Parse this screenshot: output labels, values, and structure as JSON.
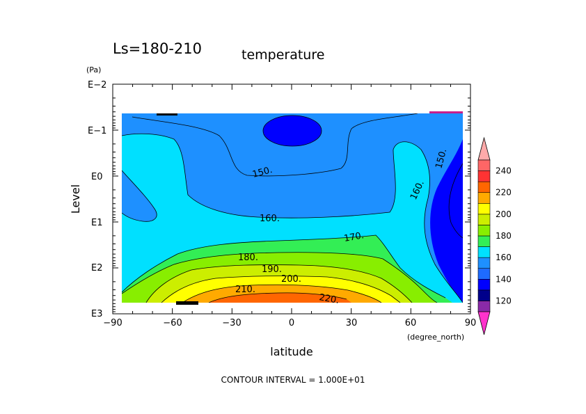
{
  "chart_data": {
    "type": "contour",
    "title_left": "Ls=180-210",
    "title_right": "temperature",
    "xlabel": "latitude",
    "xunit": "(degree_north)",
    "ylabel": "Level",
    "yunit": "(Pa)",
    "xlim": [
      -90,
      90
    ],
    "xticks": [
      -90,
      -60,
      -30,
      0,
      30,
      60,
      90
    ],
    "xtick_labels": [
      "−90",
      "−60",
      "−30",
      "0",
      "30",
      "60",
      "90"
    ],
    "ylim_log10": [
      -2,
      3
    ],
    "yticks_log10": [
      -2,
      -1,
      0,
      1,
      2,
      3
    ],
    "ytick_labels": [
      "E−2",
      "E−1",
      "E0",
      "E1",
      "E2",
      "E3"
    ],
    "y_scale": "log, pressure increasing downward",
    "contour_interval_text": "CONTOUR INTERVAL = 1.000E+01",
    "contour_labels": [
      "150.",
      "150.",
      "160.",
      "160.",
      "170.",
      "180.",
      "190.",
      "200.",
      "210.",
      "220."
    ],
    "colorbar": {
      "labels": [
        "120",
        "140",
        "160",
        "180",
        "200",
        "220",
        "240"
      ],
      "levels": [
        110,
        120,
        130,
        140,
        150,
        160,
        170,
        180,
        190,
        200,
        210,
        220,
        230,
        240,
        250
      ],
      "colors": [
        "#ff33cc",
        "#8a2aa8",
        "#00008b",
        "#0000ff",
        "#1e6bff",
        "#1e90ff",
        "#00e0ff",
        "#33ee55",
        "#88ee00",
        "#ccee00",
        "#ffff00",
        "#ffaa00",
        "#ff6600",
        "#ff3333",
        "#ff6666",
        "#ffaaaa"
      ]
    }
  }
}
